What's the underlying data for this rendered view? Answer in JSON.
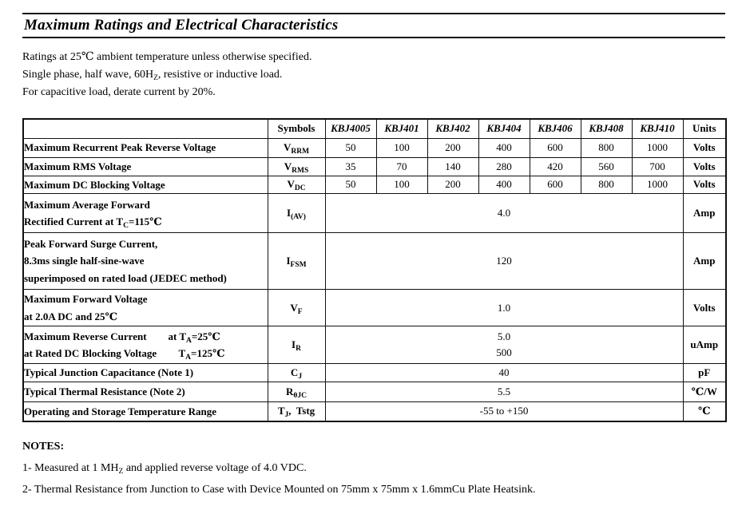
{
  "title": "Maximum Ratings and Electrical Characteristics",
  "intro": {
    "lines": [
      [
        "Ratings at 25℃ ambient temperature unless otherwise specified."
      ],
      [
        "Single phase, half wave, 60H",
        {
          "sub": "Z"
        },
        ", resistive or inductive load."
      ],
      [
        "For capacitive load, derate current by 20%."
      ]
    ]
  },
  "table": {
    "header": {
      "symbols": "Symbols",
      "parts": [
        "KBJ4005",
        "KBJ401",
        "KBJ402",
        "KBJ404",
        "KBJ406",
        "KBJ408",
        "KBJ410"
      ],
      "units": "Units"
    },
    "rows": [
      {
        "desc": [
          [
            "Maximum Recurrent Peak Reverse Voltage"
          ]
        ],
        "symbol": [
          "V",
          {
            "sub": "RRM"
          }
        ],
        "values": [
          "50",
          "100",
          "200",
          "400",
          "600",
          "800",
          "1000"
        ],
        "unit": "Volts"
      },
      {
        "desc": [
          [
            "Maximum RMS Voltage"
          ]
        ],
        "symbol": [
          "V",
          {
            "sub": "RMS"
          }
        ],
        "values": [
          "35",
          "70",
          "140",
          "280",
          "420",
          "560",
          "700"
        ],
        "unit": "Volts"
      },
      {
        "desc": [
          [
            "Maximum DC Blocking Voltage"
          ]
        ],
        "symbol": [
          "V",
          {
            "sub": "DC"
          }
        ],
        "values": [
          "50",
          "100",
          "200",
          "400",
          "600",
          "800",
          "1000"
        ],
        "unit": "Volts"
      },
      {
        "desc": [
          [
            "Maximum Average Forward"
          ],
          [
            "Rectified Current at T",
            {
              "sub": "C"
            },
            "=115℃"
          ]
        ],
        "symbol": [
          "I",
          {
            "sub": "(AV)"
          }
        ],
        "value": "4.0",
        "unit": "Amp"
      },
      {
        "desc": [
          [
            "Peak Forward Surge Current,"
          ],
          [
            "8.3ms single half-sine-wave"
          ],
          [
            "superimposed on rated load (JEDEC method)"
          ]
        ],
        "symbol": [
          "I",
          {
            "sub": "FSM"
          }
        ],
        "value": "120",
        "unit": "Amp"
      },
      {
        "desc": [
          [
            "Maximum Forward Voltage"
          ],
          [
            "at 2.0A DC and 25℃"
          ]
        ],
        "symbol": [
          "V",
          {
            "sub": "F"
          }
        ],
        "value": "1.0",
        "unit": "Volts"
      },
      {
        "desc_split": {
          "line1_left": [
            "Maximum Reverse Current"
          ],
          "line1_right": [
            "at T",
            {
              "sub": "A"
            },
            "=25℃"
          ],
          "line2_left": [
            "at Rated DC Blocking Voltage"
          ],
          "line2_right": [
            "T",
            {
              "sub": "A"
            },
            "=125℃"
          ]
        },
        "symbol": [
          "I",
          {
            "sub": "R"
          }
        ],
        "value_lines": [
          "5.0",
          "500"
        ],
        "unit": "uAmp"
      },
      {
        "desc": [
          [
            "Typical Junction Capacitance (Note 1)"
          ]
        ],
        "symbol": [
          "C",
          {
            "sub": "J"
          }
        ],
        "value": "40",
        "unit": "pF"
      },
      {
        "desc": [
          [
            "Typical Thermal Resistance (Note 2)"
          ]
        ],
        "symbol": [
          "R",
          {
            "sub": "θJC"
          }
        ],
        "value": "5.5",
        "unit": "℃/W"
      },
      {
        "desc": [
          [
            "Operating and Storage Temperature Range"
          ]
        ],
        "symbol": [
          "T",
          {
            "sub": "J"
          },
          ",  Tstg"
        ],
        "value": "-55 to +150",
        "unit": "℃"
      }
    ]
  },
  "notes": {
    "heading": "NOTES:",
    "items": [
      [
        "1- Measured at 1 MH",
        {
          "sub": "Z"
        },
        " and applied reverse voltage of 4.0 VDC."
      ],
      [
        "2- Thermal Resistance from Junction to Case with Device Mounted on 75mm x 75mm x 1.6mmCu Plate Heatsink."
      ]
    ]
  }
}
